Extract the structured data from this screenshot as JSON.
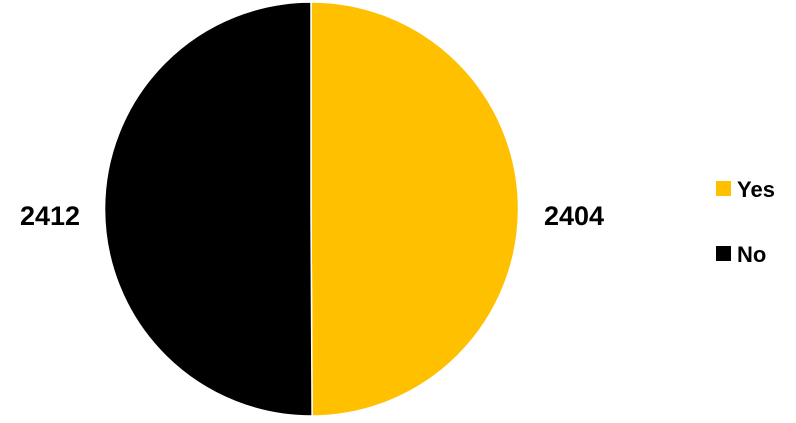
{
  "chart_data": {
    "type": "pie",
    "title": "",
    "slices": [
      {
        "label": "Yes",
        "value": 2404,
        "color": "#FFC000"
      },
      {
        "label": "No",
        "value": 2412,
        "color": "#000000"
      }
    ],
    "data_labels": [
      "2404",
      "2412"
    ],
    "legend": {
      "position": "right",
      "entries": [
        "Yes",
        "No"
      ]
    }
  }
}
